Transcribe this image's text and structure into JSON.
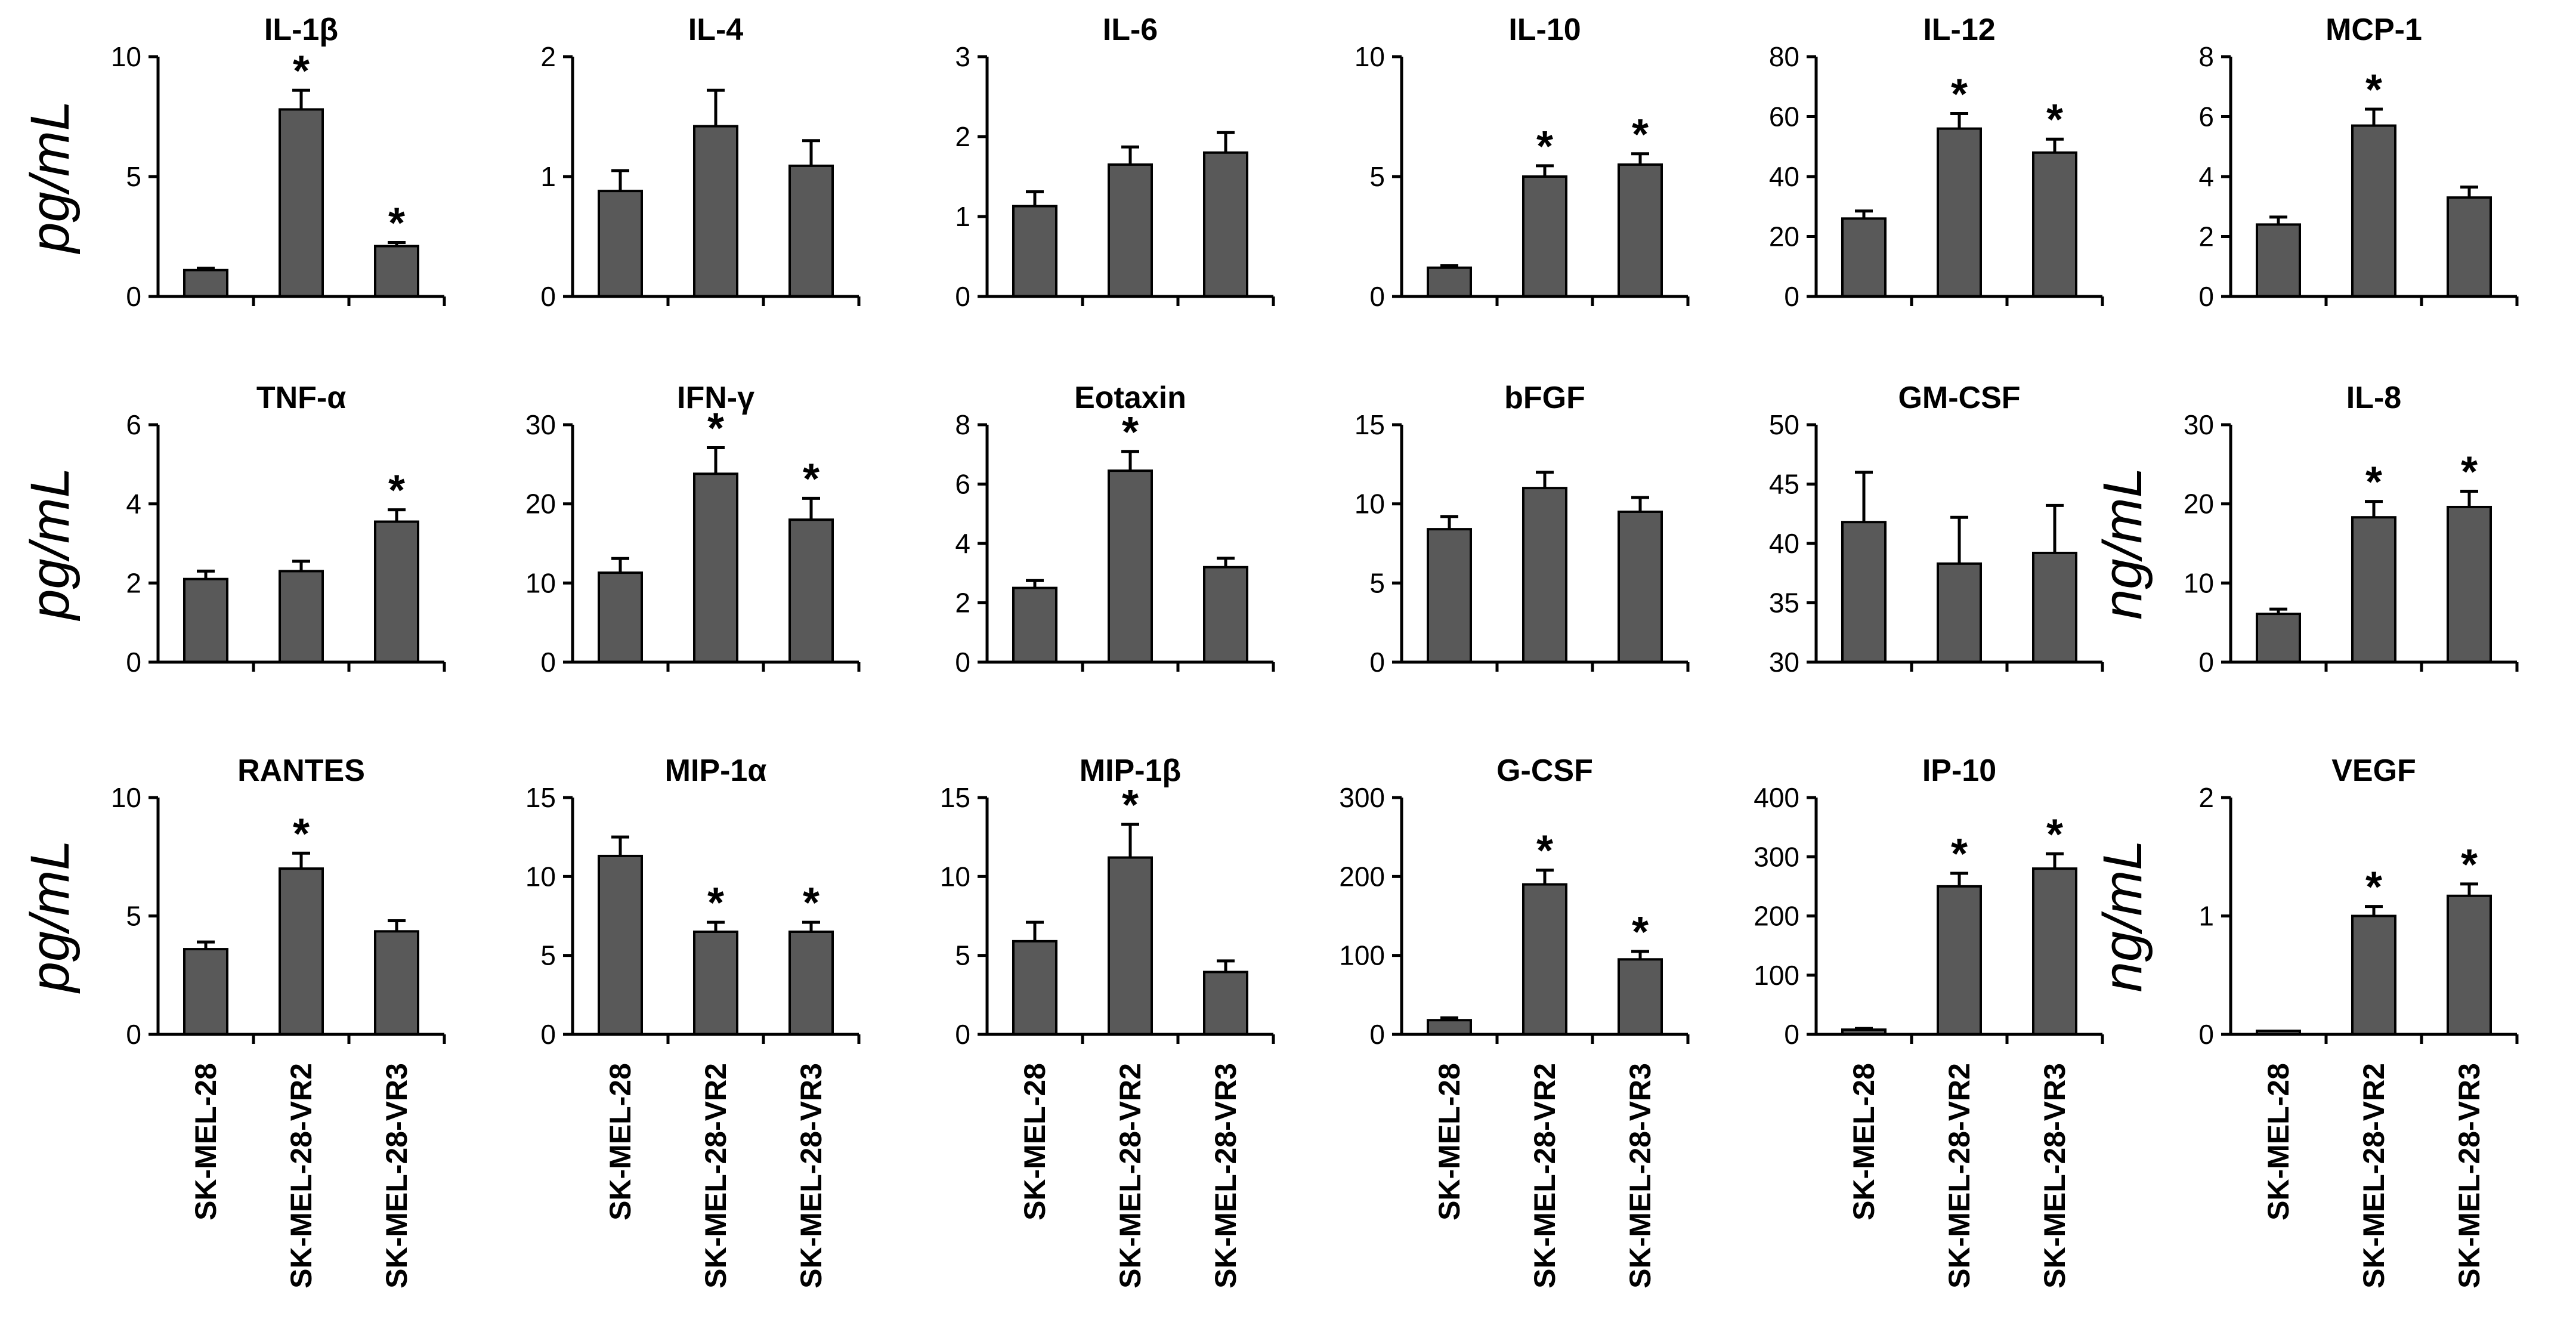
{
  "figure": {
    "categories": [
      "SK-MEL-28",
      "SK-MEL-28-VR2",
      "SK-MEL-28-VR3"
    ],
    "row_units": [
      "pg/mL",
      "pg/mL",
      "pg/mL"
    ],
    "extra_units": [
      {
        "panel": "IL-8",
        "label": "ng/mL"
      },
      {
        "panel": "VEGF",
        "label": "ng/mL"
      }
    ],
    "colors": {
      "bar": "#595959",
      "axis": "#000000"
    }
  },
  "chart_data": [
    {
      "type": "bar",
      "title": "IL-1β",
      "row": 0,
      "col": 0,
      "ylim": [
        0,
        10
      ],
      "yticks": [
        0,
        5,
        10
      ],
      "categories": [
        "SK-MEL-28",
        "SK-MEL-28-VR2",
        "SK-MEL-28-VR3"
      ],
      "values": [
        1.1,
        7.8,
        2.1
      ],
      "errors": [
        0.08,
        0.8,
        0.15
      ],
      "significant": [
        false,
        true,
        true
      ],
      "ylabel": "pg/mL"
    },
    {
      "type": "bar",
      "title": "IL-4",
      "row": 0,
      "col": 1,
      "ylim": [
        0,
        2
      ],
      "yticks": [
        0,
        1,
        2
      ],
      "categories": [
        "SK-MEL-28",
        "SK-MEL-28-VR2",
        "SK-MEL-28-VR3"
      ],
      "values": [
        0.88,
        1.42,
        1.09
      ],
      "errors": [
        0.17,
        0.3,
        0.21
      ],
      "significant": [
        false,
        false,
        false
      ]
    },
    {
      "type": "bar",
      "title": "IL-6",
      "row": 0,
      "col": 2,
      "ylim": [
        0,
        3
      ],
      "yticks": [
        0,
        1,
        2,
        3
      ],
      "categories": [
        "SK-MEL-28",
        "SK-MEL-28-VR2",
        "SK-MEL-28-VR3"
      ],
      "values": [
        1.13,
        1.65,
        1.8
      ],
      "errors": [
        0.18,
        0.22,
        0.25
      ],
      "significant": [
        false,
        false,
        false
      ]
    },
    {
      "type": "bar",
      "title": "IL-10",
      "row": 0,
      "col": 3,
      "ylim": [
        0,
        10
      ],
      "yticks": [
        0,
        5,
        10
      ],
      "categories": [
        "SK-MEL-28",
        "SK-MEL-28-VR2",
        "SK-MEL-28-VR3"
      ],
      "values": [
        1.2,
        5.0,
        5.5
      ],
      "errors": [
        0.08,
        0.45,
        0.45
      ],
      "significant": [
        false,
        true,
        true
      ]
    },
    {
      "type": "bar",
      "title": "IL-12",
      "row": 0,
      "col": 4,
      "ylim": [
        0,
        80
      ],
      "yticks": [
        0,
        20,
        40,
        60,
        80
      ],
      "categories": [
        "SK-MEL-28",
        "SK-MEL-28-VR2",
        "SK-MEL-28-VR3"
      ],
      "values": [
        26,
        56,
        48
      ],
      "errors": [
        2.5,
        5,
        4.5
      ],
      "significant": [
        false,
        true,
        true
      ]
    },
    {
      "type": "bar",
      "title": "MCP-1",
      "row": 0,
      "col": 5,
      "ylim": [
        0,
        8
      ],
      "yticks": [
        0,
        2,
        4,
        6,
        8
      ],
      "categories": [
        "SK-MEL-28",
        "SK-MEL-28-VR2",
        "SK-MEL-28-VR3"
      ],
      "values": [
        2.4,
        5.7,
        3.3
      ],
      "errors": [
        0.25,
        0.55,
        0.35
      ],
      "significant": [
        false,
        true,
        false
      ]
    },
    {
      "type": "bar",
      "title": "TNF-α",
      "row": 1,
      "col": 0,
      "ylim": [
        0,
        6
      ],
      "yticks": [
        0,
        2,
        4,
        6
      ],
      "categories": [
        "SK-MEL-28",
        "SK-MEL-28-VR2",
        "SK-MEL-28-VR3"
      ],
      "values": [
        2.1,
        2.3,
        3.55
      ],
      "errors": [
        0.2,
        0.25,
        0.3
      ],
      "significant": [
        false,
        false,
        true
      ],
      "ylabel": "pg/mL"
    },
    {
      "type": "bar",
      "title": "IFN-γ",
      "row": 1,
      "col": 1,
      "ylim": [
        0,
        30
      ],
      "yticks": [
        0,
        10,
        20,
        30
      ],
      "categories": [
        "SK-MEL-28",
        "SK-MEL-28-VR2",
        "SK-MEL-28-VR3"
      ],
      "values": [
        11.3,
        23.8,
        18.0
      ],
      "errors": [
        1.8,
        3.3,
        2.7
      ],
      "significant": [
        false,
        true,
        true
      ]
    },
    {
      "type": "bar",
      "title": "Eotaxin",
      "row": 1,
      "col": 2,
      "ylim": [
        0,
        8
      ],
      "yticks": [
        0,
        2,
        4,
        6,
        8
      ],
      "categories": [
        "SK-MEL-28",
        "SK-MEL-28-VR2",
        "SK-MEL-28-VR3"
      ],
      "values": [
        2.5,
        6.45,
        3.2
      ],
      "errors": [
        0.25,
        0.65,
        0.3
      ],
      "significant": [
        false,
        true,
        false
      ]
    },
    {
      "type": "bar",
      "title": "bFGF",
      "row": 1,
      "col": 3,
      "ylim": [
        0,
        15
      ],
      "yticks": [
        0,
        5,
        10,
        15
      ],
      "categories": [
        "SK-MEL-28",
        "SK-MEL-28-VR2",
        "SK-MEL-28-VR3"
      ],
      "values": [
        8.4,
        11.0,
        9.5
      ],
      "errors": [
        0.8,
        1.0,
        0.9
      ],
      "significant": [
        false,
        false,
        false
      ]
    },
    {
      "type": "bar",
      "title": "GM-CSF",
      "row": 1,
      "col": 4,
      "ylim": [
        30,
        50
      ],
      "yticks": [
        30,
        35,
        40,
        45,
        50
      ],
      "categories": [
        "SK-MEL-28",
        "SK-MEL-28-VR2",
        "SK-MEL-28-VR3"
      ],
      "values": [
        41.8,
        38.3,
        39.2
      ],
      "errors": [
        4.2,
        3.9,
        4.0
      ],
      "significant": [
        false,
        false,
        false
      ]
    },
    {
      "type": "bar",
      "title": "IL-8",
      "row": 1,
      "col": 5,
      "ylim": [
        0,
        30
      ],
      "yticks": [
        0,
        10,
        20,
        30
      ],
      "categories": [
        "SK-MEL-28",
        "SK-MEL-28-VR2",
        "SK-MEL-28-VR3"
      ],
      "values": [
        6.1,
        18.3,
        19.6
      ],
      "errors": [
        0.6,
        2.0,
        2.0
      ],
      "significant": [
        false,
        true,
        true
      ],
      "ylabel": "ng/mL"
    },
    {
      "type": "bar",
      "title": "RANTES",
      "row": 2,
      "col": 0,
      "ylim": [
        0,
        10
      ],
      "yticks": [
        0,
        5,
        10
      ],
      "categories": [
        "SK-MEL-28",
        "SK-MEL-28-VR2",
        "SK-MEL-28-VR3"
      ],
      "values": [
        3.6,
        7.0,
        4.35
      ],
      "errors": [
        0.3,
        0.65,
        0.45
      ],
      "significant": [
        false,
        true,
        false
      ],
      "ylabel": "pg/mL"
    },
    {
      "type": "bar",
      "title": "MIP-1α",
      "row": 2,
      "col": 1,
      "ylim": [
        0,
        15
      ],
      "yticks": [
        0,
        5,
        10,
        15
      ],
      "categories": [
        "SK-MEL-28",
        "SK-MEL-28-VR2",
        "SK-MEL-28-VR3"
      ],
      "values": [
        11.3,
        6.5,
        6.5
      ],
      "errors": [
        1.2,
        0.6,
        0.6
      ],
      "significant": [
        false,
        true,
        true
      ]
    },
    {
      "type": "bar",
      "title": "MIP-1β",
      "row": 2,
      "col": 2,
      "ylim": [
        0,
        15
      ],
      "yticks": [
        0,
        5,
        10,
        15
      ],
      "categories": [
        "SK-MEL-28",
        "SK-MEL-28-VR2",
        "SK-MEL-28-VR3"
      ],
      "values": [
        5.9,
        11.2,
        3.95
      ],
      "errors": [
        1.2,
        2.1,
        0.7
      ],
      "significant": [
        false,
        true,
        false
      ]
    },
    {
      "type": "bar",
      "title": "G-CSF",
      "row": 2,
      "col": 3,
      "ylim": [
        0,
        300
      ],
      "yticks": [
        0,
        100,
        200,
        300
      ],
      "categories": [
        "SK-MEL-28",
        "SK-MEL-28-VR2",
        "SK-MEL-28-VR3"
      ],
      "values": [
        18,
        190,
        95
      ],
      "errors": [
        3,
        18,
        10
      ],
      "significant": [
        false,
        true,
        true
      ]
    },
    {
      "type": "bar",
      "title": "IP-10",
      "row": 2,
      "col": 4,
      "ylim": [
        0,
        400
      ],
      "yticks": [
        0,
        100,
        200,
        300,
        400
      ],
      "categories": [
        "SK-MEL-28",
        "SK-MEL-28-VR2",
        "SK-MEL-28-VR3"
      ],
      "values": [
        8,
        250,
        280
      ],
      "errors": [
        2,
        22,
        25
      ],
      "significant": [
        false,
        true,
        true
      ]
    },
    {
      "type": "bar",
      "title": "VEGF",
      "row": 2,
      "col": 5,
      "ylim": [
        0,
        2
      ],
      "yticks": [
        0,
        1,
        2
      ],
      "categories": [
        "SK-MEL-28",
        "SK-MEL-28-VR2",
        "SK-MEL-28-VR3"
      ],
      "values": [
        0.03,
        1.0,
        1.17
      ],
      "errors": [
        0.005,
        0.08,
        0.1
      ],
      "significant": [
        false,
        true,
        true
      ],
      "ylabel": "ng/mL"
    }
  ]
}
